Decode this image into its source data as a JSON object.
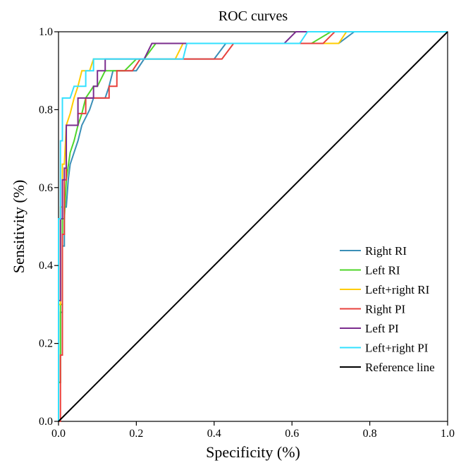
{
  "chart_data": {
    "type": "line",
    "title": "ROC curves",
    "xlabel": "Specificity (%)",
    "ylabel": "Sensitivity (%)",
    "xlim": [
      0,
      1
    ],
    "ylim": [
      0,
      1
    ],
    "xticks": [
      "0.0",
      "0.2",
      "0.4",
      "0.6",
      "0.8",
      "1.0"
    ],
    "yticks": [
      "0.0",
      "0.2",
      "0.4",
      "0.6",
      "0.8",
      "1.0"
    ],
    "grid": false,
    "legend_position": "bottom-right",
    "series": [
      {
        "name": "Right RI",
        "color": "#3a8fb7",
        "points": [
          [
            0,
            0
          ],
          [
            0,
            0.1
          ],
          [
            0.005,
            0.1
          ],
          [
            0.005,
            0.28
          ],
          [
            0.01,
            0.28
          ],
          [
            0.01,
            0.45
          ],
          [
            0.015,
            0.45
          ],
          [
            0.015,
            0.55
          ],
          [
            0.02,
            0.55
          ],
          [
            0.025,
            0.62
          ],
          [
            0.03,
            0.66
          ],
          [
            0.04,
            0.69
          ],
          [
            0.05,
            0.72
          ],
          [
            0.06,
            0.76
          ],
          [
            0.07,
            0.78
          ],
          [
            0.08,
            0.8
          ],
          [
            0.09,
            0.83
          ],
          [
            0.12,
            0.83
          ],
          [
            0.13,
            0.86
          ],
          [
            0.14,
            0.9
          ],
          [
            0.2,
            0.9
          ],
          [
            0.22,
            0.93
          ],
          [
            0.4,
            0.93
          ],
          [
            0.43,
            0.97
          ],
          [
            0.72,
            0.97
          ],
          [
            0.76,
            1.0
          ],
          [
            1.0,
            1.0
          ]
        ]
      },
      {
        "name": "Left RI",
        "color": "#4fd62a",
        "points": [
          [
            0,
            0
          ],
          [
            0,
            0.1
          ],
          [
            0.005,
            0.1
          ],
          [
            0.005,
            0.3
          ],
          [
            0.01,
            0.3
          ],
          [
            0.01,
            0.52
          ],
          [
            0.015,
            0.52
          ],
          [
            0.02,
            0.62
          ],
          [
            0.03,
            0.69
          ],
          [
            0.04,
            0.72
          ],
          [
            0.05,
            0.76
          ],
          [
            0.06,
            0.79
          ],
          [
            0.07,
            0.83
          ],
          [
            0.09,
            0.86
          ],
          [
            0.1,
            0.86
          ],
          [
            0.12,
            0.9
          ],
          [
            0.17,
            0.9
          ],
          [
            0.2,
            0.93
          ],
          [
            0.22,
            0.93
          ],
          [
            0.25,
            0.97
          ],
          [
            0.65,
            0.97
          ],
          [
            0.7,
            1.0
          ],
          [
            1.0,
            1.0
          ]
        ]
      },
      {
        "name": "Left+right RI",
        "color": "#ffcc00",
        "points": [
          [
            0,
            0
          ],
          [
            0,
            0.3
          ],
          [
            0.005,
            0.3
          ],
          [
            0.005,
            0.55
          ],
          [
            0.01,
            0.55
          ],
          [
            0.01,
            0.66
          ],
          [
            0.015,
            0.66
          ],
          [
            0.02,
            0.76
          ],
          [
            0.03,
            0.79
          ],
          [
            0.04,
            0.83
          ],
          [
            0.05,
            0.86
          ],
          [
            0.06,
            0.9
          ],
          [
            0.08,
            0.9
          ],
          [
            0.09,
            0.93
          ],
          [
            0.3,
            0.93
          ],
          [
            0.32,
            0.97
          ],
          [
            0.72,
            0.97
          ],
          [
            0.74,
            1.0
          ],
          [
            1.0,
            1.0
          ]
        ]
      },
      {
        "name": "Right PI",
        "color": "#e8413c",
        "points": [
          [
            0,
            0
          ],
          [
            0.005,
            0
          ],
          [
            0.005,
            0.17
          ],
          [
            0.01,
            0.17
          ],
          [
            0.01,
            0.48
          ],
          [
            0.015,
            0.48
          ],
          [
            0.015,
            0.62
          ],
          [
            0.02,
            0.62
          ],
          [
            0.02,
            0.76
          ],
          [
            0.05,
            0.76
          ],
          [
            0.05,
            0.79
          ],
          [
            0.07,
            0.79
          ],
          [
            0.07,
            0.83
          ],
          [
            0.13,
            0.83
          ],
          [
            0.13,
            0.86
          ],
          [
            0.15,
            0.86
          ],
          [
            0.15,
            0.9
          ],
          [
            0.19,
            0.9
          ],
          [
            0.21,
            0.93
          ],
          [
            0.42,
            0.93
          ],
          [
            0.45,
            0.97
          ],
          [
            0.68,
            0.97
          ],
          [
            0.71,
            1.0
          ],
          [
            1.0,
            1.0
          ]
        ]
      },
      {
        "name": "Left PI",
        "color": "#7b2d8e",
        "points": [
          [
            0,
            0
          ],
          [
            0,
            0.31
          ],
          [
            0.005,
            0.31
          ],
          [
            0.005,
            0.52
          ],
          [
            0.01,
            0.52
          ],
          [
            0.01,
            0.62
          ],
          [
            0.015,
            0.62
          ],
          [
            0.015,
            0.65
          ],
          [
            0.02,
            0.65
          ],
          [
            0.02,
            0.76
          ],
          [
            0.05,
            0.76
          ],
          [
            0.05,
            0.83
          ],
          [
            0.09,
            0.83
          ],
          [
            0.09,
            0.86
          ],
          [
            0.1,
            0.86
          ],
          [
            0.1,
            0.9
          ],
          [
            0.12,
            0.9
          ],
          [
            0.12,
            0.93
          ],
          [
            0.22,
            0.93
          ],
          [
            0.24,
            0.97
          ],
          [
            0.58,
            0.97
          ],
          [
            0.61,
            1.0
          ],
          [
            1.0,
            1.0
          ]
        ]
      },
      {
        "name": "Left+right PI",
        "color": "#33e0ff",
        "points": [
          [
            0,
            0
          ],
          [
            0,
            0.52
          ],
          [
            0.005,
            0.52
          ],
          [
            0.005,
            0.72
          ],
          [
            0.01,
            0.72
          ],
          [
            0.01,
            0.83
          ],
          [
            0.03,
            0.83
          ],
          [
            0.04,
            0.86
          ],
          [
            0.07,
            0.86
          ],
          [
            0.07,
            0.9
          ],
          [
            0.09,
            0.9
          ],
          [
            0.09,
            0.93
          ],
          [
            0.32,
            0.93
          ],
          [
            0.33,
            0.97
          ],
          [
            0.62,
            0.97
          ],
          [
            0.64,
            1.0
          ],
          [
            1.0,
            1.0
          ]
        ]
      },
      {
        "name": "Reference line",
        "color": "#000000",
        "points": [
          [
            0,
            0
          ],
          [
            1,
            1
          ]
        ]
      }
    ]
  }
}
